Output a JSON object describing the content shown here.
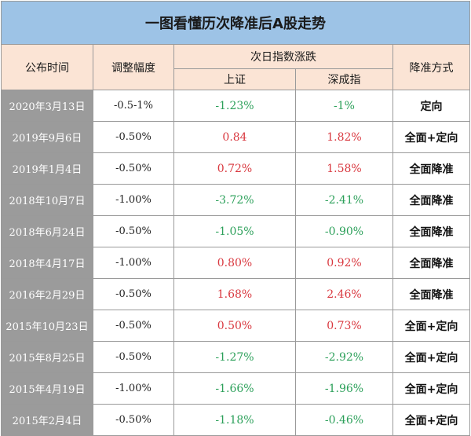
{
  "title": "一图看懂历次降准后A股走势",
  "headers": {
    "date": "公布时间",
    "adjustment": "调整幅度",
    "next_day": "次日指数涨跌",
    "shanghai": "上证",
    "shenzhen": "深成指",
    "method": "降准方式"
  },
  "colors": {
    "title_bg": "#9dc3e6",
    "header_bg": "#fbe4d5",
    "date_bg": "#9b9b9b",
    "up": "#d9383f",
    "down": "#2ca05a"
  },
  "rows": [
    {
      "date": "2020年3月13日",
      "adjustment": "-0.5-1%",
      "shanghai": "-1.23%",
      "shenzhen": "-1%",
      "method": "定向",
      "sh_dir": "down",
      "sz_dir": "down"
    },
    {
      "date": "2019年9月6日",
      "adjustment": "-0.50%",
      "shanghai": "0.84",
      "shenzhen": "1.82%",
      "method": "全面+定向",
      "sh_dir": "up",
      "sz_dir": "up"
    },
    {
      "date": "2019年1月4日",
      "adjustment": "-0.50%",
      "shanghai": "0.72%",
      "shenzhen": "1.58%",
      "method": "全面降准",
      "sh_dir": "up",
      "sz_dir": "up"
    },
    {
      "date": "2018年10月7日",
      "adjustment": "-1.00%",
      "shanghai": "-3.72%",
      "shenzhen": "-2.41%",
      "method": "全面降准",
      "sh_dir": "down",
      "sz_dir": "down"
    },
    {
      "date": "2018年6月24日",
      "adjustment": "-0.50%",
      "shanghai": "-1.05%",
      "shenzhen": "-0.90%",
      "method": "全面降准",
      "sh_dir": "down",
      "sz_dir": "down"
    },
    {
      "date": "2018年4月17日",
      "adjustment": "-1.00%",
      "shanghai": "0.80%",
      "shenzhen": "0.92%",
      "method": "全面降准",
      "sh_dir": "up",
      "sz_dir": "up"
    },
    {
      "date": "2016年2月29日",
      "adjustment": "-0.50%",
      "shanghai": "1.68%",
      "shenzhen": "2.46%",
      "method": "全面降准",
      "sh_dir": "up",
      "sz_dir": "up"
    },
    {
      "date": "2015年10月23日",
      "adjustment": "-0.50%",
      "shanghai": "0.50%",
      "shenzhen": "0.73%",
      "method": "全面+定向",
      "sh_dir": "up",
      "sz_dir": "up"
    },
    {
      "date": "2015年8月25日",
      "adjustment": "-0.50%",
      "shanghai": "-1.27%",
      "shenzhen": "-2.92%",
      "method": "全面+定向",
      "sh_dir": "down",
      "sz_dir": "down"
    },
    {
      "date": "2015年4月19日",
      "adjustment": "-1.00%",
      "shanghai": "-1.66%",
      "shenzhen": "-1.96%",
      "method": "全面+定向",
      "sh_dir": "down",
      "sz_dir": "down"
    },
    {
      "date": "2015年2月4日",
      "adjustment": "-0.50%",
      "shanghai": "-1.18%",
      "shenzhen": "-0.46%",
      "method": "全面+定向",
      "sh_dir": "down",
      "sz_dir": "down"
    }
  ]
}
